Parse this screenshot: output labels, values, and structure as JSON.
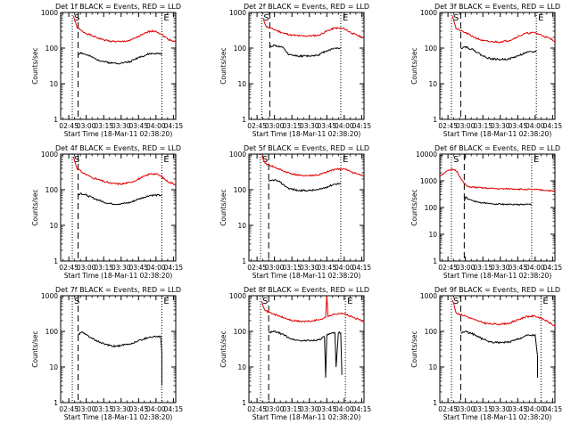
{
  "chart_data": [
    {
      "type": "line",
      "title": "Det 1f BLACK = Events, RED = LLD",
      "xlabel": "Start Time (18-Mar-11 02:38:20)",
      "ylabel": "Counts/sec",
      "xlim": [
        "02:38",
        "04:17"
      ],
      "ylim": [
        1,
        1000
      ],
      "yscale": "log",
      "xticks": [
        "02:45",
        "03:00",
        "03:15",
        "03:30",
        "03:45",
        "04:00",
        "04:15"
      ],
      "yticks": [
        "1",
        "10",
        "100",
        "1000"
      ],
      "markers": [
        {
          "label": "S",
          "x": "02:48",
          "style": "dotted"
        },
        {
          "label": "",
          "x": "02:53",
          "style": "dashed"
        },
        {
          "label": "E",
          "x": "04:05",
          "style": "dotted"
        }
      ],
      "series": [
        {
          "color": "#e00000",
          "x": [
            "02:49",
            "02:52",
            "02:57",
            "03:05",
            "03:15",
            "03:22",
            "03:30",
            "03:38",
            "03:48",
            "03:55",
            "04:00",
            "04:05",
            "04:10",
            "04:17"
          ],
          "values": [
            800,
            380,
            290,
            220,
            170,
            155,
            150,
            165,
            235,
            300,
            300,
            240,
            180,
            150
          ]
        },
        {
          "color": "#000000",
          "x": [
            "02:53",
            "02:55",
            "03:00",
            "03:08",
            "03:15",
            "03:22",
            "03:30",
            "03:38",
            "03:45",
            "03:55",
            "04:05"
          ],
          "values": [
            65,
            75,
            65,
            50,
            42,
            38,
            38,
            42,
            55,
            70,
            70
          ]
        }
      ]
    },
    {
      "type": "line",
      "title": "Det 2f BLACK = Events, RED = LLD",
      "xlabel": "Start Time (18-Mar-11 02:38:20)",
      "ylabel": "Counts/sec",
      "xlim": [
        "02:38",
        "04:17"
      ],
      "ylim": [
        1,
        1000
      ],
      "yscale": "log",
      "xticks": [
        "02:45",
        "03:00",
        "03:15",
        "03:30",
        "03:45",
        "04:00",
        "04:15"
      ],
      "yticks": [
        "1",
        "10",
        "100",
        "1000"
      ],
      "markers": [
        {
          "label": "S",
          "x": "02:49",
          "style": "dotted"
        },
        {
          "label": "",
          "x": "02:56",
          "style": "dashed"
        },
        {
          "label": "E",
          "x": "03:57",
          "style": "dotted"
        }
      ],
      "series": [
        {
          "color": "#e00000",
          "x": [
            "02:50",
            "02:53",
            "03:00",
            "03:08",
            "03:15",
            "03:22",
            "03:30",
            "03:38",
            "03:45",
            "03:52",
            "04:00",
            "04:07",
            "04:17"
          ],
          "values": [
            700,
            400,
            330,
            260,
            230,
            220,
            220,
            230,
            300,
            370,
            350,
            260,
            190
          ]
        },
        {
          "color": "#000000",
          "x": [
            "02:56",
            "03:00",
            "03:08",
            "03:12",
            "03:20",
            "03:30",
            "03:38",
            "03:45",
            "03:52",
            "03:57"
          ],
          "values": [
            110,
            120,
            100,
            65,
            60,
            60,
            65,
            85,
            100,
            100
          ]
        }
      ]
    },
    {
      "type": "line",
      "title": "Det 3f BLACK = Events, RED = LLD",
      "xlabel": "Start Time (18-Mar-11 02:38:20)",
      "ylabel": "Counts/sec",
      "xlim": [
        "02:38",
        "04:17"
      ],
      "ylim": [
        1,
        1000
      ],
      "yscale": "log",
      "xticks": [
        "02:45",
        "03:00",
        "03:15",
        "03:30",
        "03:45",
        "04:00",
        "04:15"
      ],
      "yticks": [
        "1",
        "10",
        "100",
        "1000"
      ],
      "markers": [
        {
          "label": "S",
          "x": "02:48",
          "style": "dotted"
        },
        {
          "label": "",
          "x": "02:56",
          "style": "dashed"
        },
        {
          "label": "E",
          "x": "04:01",
          "style": "dotted"
        }
      ],
      "series": [
        {
          "color": "#e00000",
          "x": [
            "02:49",
            "02:52",
            "03:00",
            "03:08",
            "03:15",
            "03:22",
            "03:30",
            "03:38",
            "03:45",
            "03:52",
            "04:00",
            "04:07",
            "04:17"
          ],
          "values": [
            800,
            350,
            270,
            200,
            160,
            150,
            150,
            165,
            210,
            260,
            270,
            220,
            160
          ]
        },
        {
          "color": "#000000",
          "x": [
            "02:56",
            "03:00",
            "03:08",
            "03:15",
            "03:22",
            "03:30",
            "03:38",
            "03:45",
            "03:52",
            "04:01"
          ],
          "values": [
            100,
            110,
            85,
            60,
            50,
            48,
            50,
            60,
            75,
            80
          ]
        }
      ]
    },
    {
      "type": "line",
      "title": "Det 4f BLACK = Events, RED = LLD",
      "xlabel": "Start Time (18-Mar-11 02:38:20)",
      "ylabel": "Counts/sec",
      "xlim": [
        "02:38",
        "04:17"
      ],
      "ylim": [
        1,
        1000
      ],
      "yscale": "log",
      "xticks": [
        "02:45",
        "03:00",
        "03:15",
        "03:30",
        "03:45",
        "04:00",
        "04:15"
      ],
      "yticks": [
        "1",
        "10",
        "100",
        "1000"
      ],
      "markers": [
        {
          "label": "S",
          "x": "02:48",
          "style": "dotted"
        },
        {
          "label": "",
          "x": "02:53",
          "style": "dashed"
        },
        {
          "label": "E",
          "x": "04:05",
          "style": "dotted"
        }
      ],
      "series": [
        {
          "color": "#e00000",
          "x": [
            "02:49",
            "02:52",
            "02:57",
            "03:05",
            "03:15",
            "03:22",
            "03:30",
            "03:38",
            "03:48",
            "03:55",
            "04:00",
            "04:05",
            "04:10",
            "04:17"
          ],
          "values": [
            850,
            400,
            300,
            220,
            170,
            150,
            145,
            160,
            220,
            280,
            280,
            230,
            170,
            140
          ]
        },
        {
          "color": "#000000",
          "x": [
            "02:53",
            "02:55",
            "03:00",
            "03:08",
            "03:15",
            "03:22",
            "03:30",
            "03:38",
            "03:45",
            "03:55",
            "04:05"
          ],
          "values": [
            70,
            80,
            70,
            55,
            45,
            40,
            40,
            44,
            55,
            70,
            70
          ]
        }
      ]
    },
    {
      "type": "line",
      "title": "Det 5f BLACK = Events, RED = LLD",
      "xlabel": "Start Time (18-Mar-11 02:38:20)",
      "ylabel": "Counts/sec",
      "xlim": [
        "02:38",
        "04:17"
      ],
      "ylim": [
        1,
        1000
      ],
      "yscale": "log",
      "xticks": [
        "02:45",
        "03:00",
        "03:15",
        "03:30",
        "03:45",
        "04:00",
        "04:15"
      ],
      "yticks": [
        "1",
        "10",
        "100",
        "1000"
      ],
      "markers": [
        {
          "label": "S",
          "x": "02:48",
          "style": "dotted"
        },
        {
          "label": "",
          "x": "02:55",
          "style": "dashed"
        },
        {
          "label": "E",
          "x": "03:57",
          "style": "dotted"
        }
      ],
      "series": [
        {
          "color": "#e00000",
          "x": [
            "02:49",
            "02:52",
            "03:00",
            "03:08",
            "03:15",
            "03:22",
            "03:30",
            "03:38",
            "03:45",
            "03:52",
            "04:00",
            "04:07",
            "04:17"
          ],
          "values": [
            900,
            550,
            430,
            330,
            280,
            250,
            250,
            260,
            310,
            380,
            380,
            310,
            240
          ]
        },
        {
          "color": "#000000",
          "x": [
            "02:55",
            "03:00",
            "03:05",
            "03:12",
            "03:20",
            "03:30",
            "03:38",
            "03:45",
            "03:52",
            "03:57"
          ],
          "values": [
            170,
            190,
            160,
            110,
            95,
            95,
            100,
            120,
            145,
            150
          ]
        }
      ]
    },
    {
      "type": "line",
      "title": "Det 6f BLACK = Events, RED = LLD",
      "xlabel": "Start Time (18-Mar-11 02:38:20)",
      "ylabel": "Counts/sec",
      "xlim": [
        "02:38",
        "04:17"
      ],
      "ylim": [
        1,
        10000
      ],
      "yscale": "log",
      "xticks": [
        "02:45",
        "03:00",
        "03:15",
        "03:30",
        "03:45",
        "04:00",
        "04:15"
      ],
      "yticks": [
        "1",
        "10",
        "100",
        "1000",
        "10000"
      ],
      "markers": [
        {
          "label": "S",
          "x": "02:48",
          "style": "dotted"
        },
        {
          "label": "",
          "x": "02:59",
          "style": "dashed"
        },
        {
          "label": "E",
          "x": "03:57",
          "style": "dotted"
        }
      ],
      "series": [
        {
          "color": "#e00000",
          "x": [
            "02:38",
            "02:42",
            "02:46",
            "02:50",
            "02:53",
            "02:56",
            "02:59",
            "03:02",
            "03:10",
            "03:20",
            "03:30",
            "03:40",
            "03:50",
            "04:00",
            "04:10",
            "04:17"
          ],
          "values": [
            1500,
            2000,
            2500,
            2700,
            2200,
            1200,
            800,
            600,
            560,
            520,
            500,
            500,
            480,
            470,
            440,
            400
          ]
        },
        {
          "color": "#000000",
          "x": [
            "02:59",
            "03:00",
            "03:03",
            "03:10",
            "03:20",
            "03:30",
            "03:40",
            "03:50",
            "03:57"
          ],
          "values": [
            170,
            250,
            200,
            160,
            140,
            135,
            130,
            130,
            130
          ]
        }
      ]
    },
    {
      "type": "line",
      "title": "Det 7f BLACK = Events, RED = LLD",
      "xlabel": "Start Time (18-Mar-11 02:38:20)",
      "ylabel": "Counts/sec",
      "xlim": [
        "02:38",
        "04:17"
      ],
      "ylim": [
        1,
        1000
      ],
      "yscale": "log",
      "xticks": [
        "02:45",
        "03:00",
        "03:15",
        "03:30",
        "03:45",
        "04:00",
        "04:15"
      ],
      "yticks": [
        "1",
        "10",
        "100",
        "1000"
      ],
      "markers": [
        {
          "label": "S",
          "x": "02:48",
          "style": "dotted"
        },
        {
          "label": "",
          "x": "02:53",
          "style": "dashed"
        },
        {
          "label": "E",
          "x": "04:05",
          "style": "dotted"
        }
      ],
      "series": [
        {
          "color": "#000000",
          "x": [
            "02:53",
            "02:56",
            "03:00",
            "03:08",
            "03:15",
            "03:22",
            "03:30",
            "03:38",
            "03:45",
            "03:55",
            "04:04",
            "04:05",
            "04:05"
          ],
          "values": [
            80,
            95,
            80,
            55,
            45,
            38,
            40,
            44,
            55,
            70,
            72,
            25,
            3
          ]
        }
      ]
    },
    {
      "type": "line",
      "title": "Det 8f BLACK = Events, RED = LLD",
      "xlabel": "Start Time (18-Mar-11 02:38:20)",
      "ylabel": "Counts/sec",
      "xlim": [
        "02:38",
        "04:17"
      ],
      "ylim": [
        1,
        1000
      ],
      "yscale": "log",
      "xticks": [
        "02:45",
        "03:00",
        "03:15",
        "03:30",
        "03:45",
        "04:00",
        "04:15"
      ],
      "yticks": [
        "1",
        "10",
        "100",
        "1000"
      ],
      "markers": [
        {
          "label": "S",
          "x": "02:48",
          "style": "dotted"
        },
        {
          "label": "",
          "x": "02:55",
          "style": "dashed"
        },
        {
          "label": "E",
          "x": "04:01",
          "style": "dotted"
        }
      ],
      "series": [
        {
          "color": "#e00000",
          "x": [
            "02:49",
            "02:52",
            "03:00",
            "03:08",
            "03:15",
            "03:22",
            "03:30",
            "03:38",
            "03:44",
            "03:45",
            "03:46",
            "03:48",
            "03:55",
            "04:00",
            "04:07",
            "04:17"
          ],
          "values": [
            700,
            380,
            300,
            240,
            200,
            190,
            190,
            210,
            250,
            1000,
            260,
            280,
            320,
            310,
            250,
            190
          ]
        },
        {
          "color": "#000000",
          "x": [
            "02:55",
            "03:00",
            "03:08",
            "03:15",
            "03:22",
            "03:30",
            "03:38",
            "03:43",
            "03:44",
            "03:45",
            "03:48",
            "03:52",
            "03:53",
            "03:55",
            "03:57",
            "03:58"
          ],
          "values": [
            90,
            100,
            80,
            60,
            55,
            55,
            58,
            70,
            5,
            80,
            85,
            90,
            10,
            90,
            90,
            6
          ]
        }
      ]
    },
    {
      "type": "line",
      "title": "Det 9f BLACK = Events, RED = LLD",
      "xlabel": "Start Time (18-Mar-11 02:38:20)",
      "ylabel": "Counts/sec",
      "xlim": [
        "02:38",
        "04:17"
      ],
      "ylim": [
        1,
        1000
      ],
      "yscale": "log",
      "xticks": [
        "02:45",
        "03:00",
        "03:15",
        "03:30",
        "03:45",
        "04:00",
        "04:15"
      ],
      "yticks": [
        "1",
        "10",
        "100",
        "1000"
      ],
      "markers": [
        {
          "label": "S",
          "x": "02:48",
          "style": "dotted"
        },
        {
          "label": "",
          "x": "02:56",
          "style": "dashed"
        },
        {
          "label": "E",
          "x": "04:05",
          "style": "dotted"
        }
      ],
      "series": [
        {
          "color": "#e00000",
          "x": [
            "02:49",
            "02:52",
            "03:00",
            "03:08",
            "03:15",
            "03:22",
            "03:30",
            "03:38",
            "03:45",
            "03:52",
            "04:00",
            "04:07",
            "04:17"
          ],
          "values": [
            750,
            330,
            270,
            210,
            175,
            160,
            160,
            170,
            210,
            260,
            270,
            220,
            140
          ]
        },
        {
          "color": "#000000",
          "x": [
            "02:56",
            "03:00",
            "03:08",
            "03:15",
            "03:22",
            "03:30",
            "03:38",
            "03:45",
            "03:52",
            "04:00",
            "04:02",
            "04:02"
          ],
          "values": [
            90,
            100,
            80,
            60,
            50,
            48,
            50,
            60,
            75,
            80,
            20,
            5
          ]
        }
      ]
    }
  ]
}
